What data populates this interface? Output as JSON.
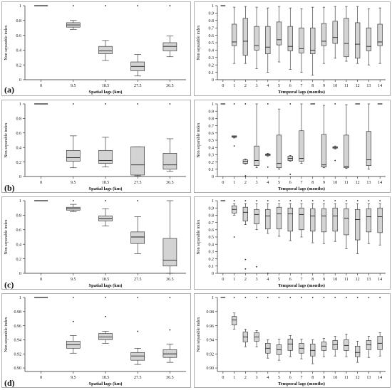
{
  "figure": {
    "row_labels": [
      "(a)",
      "(b)",
      "(c)",
      "(d)"
    ]
  },
  "chart_data": [
    {
      "type": "box",
      "row": "(a)",
      "xlabel": "Spatial lags (km)",
      "ylabel": "Non separable index",
      "categories": [
        "0",
        "9.5",
        "18.5",
        "27.5",
        "36.5"
      ],
      "ylim": [
        0,
        1
      ],
      "yticks": [
        "0",
        "0.2",
        "0.4",
        "0.6",
        "0.8",
        "1"
      ],
      "boxes": [
        {
          "min": 1,
          "q1": 1,
          "median": 1,
          "q3": 1,
          "max": 1,
          "outliers": []
        },
        {
          "min": 0.68,
          "q1": 0.71,
          "median": 0.74,
          "q3": 0.77,
          "max": 0.8,
          "outliers": [
            1.0
          ]
        },
        {
          "min": 0.26,
          "q1": 0.35,
          "median": 0.39,
          "q3": 0.45,
          "max": 0.53,
          "outliers": [
            1.0
          ]
        },
        {
          "min": 0.05,
          "q1": 0.12,
          "median": 0.18,
          "q3": 0.24,
          "max": 0.34,
          "outliers": [
            1.0
          ]
        },
        {
          "min": 0.31,
          "q1": 0.39,
          "median": 0.45,
          "q3": 0.5,
          "max": 0.59,
          "outliers": [
            1.0
          ]
        }
      ]
    },
    {
      "type": "box",
      "row": "(a)",
      "xlabel": "Temporal lags (months)",
      "ylabel": "Non separable index",
      "categories": [
        "0",
        "1",
        "2",
        "3",
        "4",
        "5",
        "6",
        "7",
        "8",
        "9",
        "10",
        "11",
        "12",
        "13",
        "14"
      ],
      "ylim": [
        0,
        1
      ],
      "yticks": [
        "0",
        "0.1",
        "0.2",
        "0.3",
        "0.4",
        "0.5",
        "0.6",
        "0.7",
        "0.8",
        "0.9",
        "1"
      ],
      "boxes": [
        {
          "min": 1,
          "q1": 1,
          "median": 1,
          "q3": 1,
          "max": 1,
          "outliers": []
        },
        {
          "min": 0.22,
          "q1": 0.46,
          "median": 0.51,
          "q3": 0.75,
          "max": 0.98,
          "outliers": []
        },
        {
          "min": 0.22,
          "q1": 0.33,
          "median": 0.52,
          "q3": 0.83,
          "max": 0.99,
          "outliers": []
        },
        {
          "min": 0.15,
          "q1": 0.4,
          "median": 0.46,
          "q3": 0.72,
          "max": 0.98,
          "outliers": []
        },
        {
          "min": 0.1,
          "q1": 0.35,
          "median": 0.44,
          "q3": 0.72,
          "max": 0.97,
          "outliers": []
        },
        {
          "min": 0.24,
          "q1": 0.47,
          "median": 0.54,
          "q3": 0.78,
          "max": 0.99,
          "outliers": []
        },
        {
          "min": 0.14,
          "q1": 0.39,
          "median": 0.45,
          "q3": 0.72,
          "max": 0.97,
          "outliers": []
        },
        {
          "min": 0.1,
          "q1": 0.36,
          "median": 0.42,
          "q3": 0.7,
          "max": 0.96,
          "outliers": []
        },
        {
          "min": 0.06,
          "q1": 0.35,
          "median": 0.4,
          "q3": 0.7,
          "max": 0.98,
          "outliers": []
        },
        {
          "min": 0.22,
          "q1": 0.46,
          "median": 0.52,
          "q3": 0.76,
          "max": 0.98,
          "outliers": []
        },
        {
          "min": 0.29,
          "q1": 0.49,
          "median": 0.57,
          "q3": 0.79,
          "max": 0.99,
          "outliers": []
        },
        {
          "min": 0.25,
          "q1": 0.31,
          "median": 0.49,
          "q3": 0.83,
          "max": 0.99,
          "outliers": []
        },
        {
          "min": 0.22,
          "q1": 0.29,
          "median": 0.48,
          "q3": 0.77,
          "max": 0.99,
          "outliers": []
        },
        {
          "min": 0.2,
          "q1": 0.39,
          "median": 0.45,
          "q3": 0.7,
          "max": 0.96,
          "outliers": []
        },
        {
          "min": 0.22,
          "q1": 0.46,
          "median": 0.51,
          "q3": 0.75,
          "max": 0.97,
          "outliers": []
        }
      ]
    },
    {
      "type": "box",
      "row": "(b)",
      "xlabel": "Spatial lags (km)",
      "ylabel": "Non separable index",
      "categories": [
        "0",
        "9.5",
        "18.5",
        "27.5",
        "36.5"
      ],
      "ylim": [
        0,
        1
      ],
      "yticks": [
        "0",
        "0.2",
        "0.4",
        "0.6",
        "0.8",
        "1"
      ],
      "boxes": [
        {
          "min": 1,
          "q1": 1,
          "median": 1,
          "q3": 1,
          "max": 1,
          "outliers": []
        },
        {
          "min": 0.12,
          "q1": 0.21,
          "median": 0.26,
          "q3": 0.36,
          "max": 0.56,
          "outliers": [
            1.0
          ]
        },
        {
          "min": 0.13,
          "q1": 0.18,
          "median": 0.22,
          "q3": 0.36,
          "max": 0.54,
          "outliers": [
            1.0
          ]
        },
        {
          "min": 0.01,
          "q1": 0.02,
          "median": 0.16,
          "q3": 0.41,
          "max": 0.41,
          "outliers": [
            1.0
          ]
        },
        {
          "min": 0.07,
          "q1": 0.1,
          "median": 0.16,
          "q3": 0.32,
          "max": 0.52,
          "outliers": [
            1.0
          ]
        }
      ]
    },
    {
      "type": "box",
      "row": "(b)",
      "xlabel": "Temporal lags (months)",
      "ylabel": "Non separable index",
      "categories": [
        "0",
        "1",
        "2",
        "3",
        "4",
        "5",
        "6",
        "7",
        "8",
        "9",
        "10",
        "11",
        "12",
        "13",
        "14"
      ],
      "ylim": [
        0,
        1
      ],
      "yticks": [
        "0",
        "0.1",
        "0.2",
        "0.3",
        "0.4",
        "0.5",
        "0.6",
        "0.7",
        "0.8",
        "0.9",
        "1"
      ],
      "boxes": [
        {
          "min": 1,
          "q1": 1,
          "median": 1,
          "q3": 1,
          "max": 1,
          "outliers": []
        },
        {
          "min": 0.53,
          "q1": 0.54,
          "median": 0.55,
          "q3": 0.56,
          "max": 0.56,
          "outliers": [
            0.42,
            1.0
          ]
        },
        {
          "min": 0.17,
          "q1": 0.18,
          "median": 0.21,
          "q3": 0.23,
          "max": 0.24,
          "outliers": [
            0.01,
            1.0
          ]
        },
        {
          "min": 0.12,
          "q1": 0.15,
          "median": 0.22,
          "q3": 0.42,
          "max": 1.0,
          "outliers": []
        },
        {
          "min": 0.28,
          "q1": 0.29,
          "median": 0.3,
          "q3": 0.31,
          "max": 0.32,
          "outliers": [
            0.13,
            1.0
          ]
        },
        {
          "min": 0.1,
          "q1": 0.12,
          "median": 0.18,
          "q3": 0.57,
          "max": 0.93,
          "outliers": []
        },
        {
          "min": 0.21,
          "q1": 0.22,
          "median": 0.25,
          "q3": 0.28,
          "max": 0.29,
          "outliers": [
            0.03,
            1.0
          ]
        },
        {
          "min": 0.18,
          "q1": 0.21,
          "median": 0.25,
          "q3": 0.63,
          "max": 1.0,
          "outliers": []
        },
        {
          "min": 1,
          "q1": 1,
          "median": 1,
          "q3": 1,
          "max": 1,
          "outliers": []
        },
        {
          "min": 0.12,
          "q1": 0.13,
          "median": 0.16,
          "q3": 0.58,
          "max": 0.98,
          "outliers": []
        },
        {
          "min": 0.38,
          "q1": 0.39,
          "median": 0.4,
          "q3": 0.41,
          "max": 0.42,
          "outliers": [
            0.22,
            1.0
          ]
        },
        {
          "min": 0.11,
          "q1": 0.12,
          "median": 0.14,
          "q3": 0.57,
          "max": 0.99,
          "outliers": []
        },
        {
          "min": 1,
          "q1": 1,
          "median": 1,
          "q3": 1,
          "max": 1,
          "outliers": []
        },
        {
          "min": 0.1,
          "q1": 0.15,
          "median": 0.23,
          "q3": 0.62,
          "max": 1.0,
          "outliers": []
        },
        {
          "min": 1,
          "q1": 1,
          "median": 1,
          "q3": 1,
          "max": 1,
          "outliers": []
        }
      ]
    },
    {
      "type": "box",
      "row": "(c)",
      "xlabel": "Spatial lags (km)",
      "ylabel": "Non separable index",
      "categories": [
        "0",
        "9.5",
        "18.5",
        "27.5",
        "36.5"
      ],
      "ylim": [
        0,
        1
      ],
      "yticks": [
        "0",
        "0.2",
        "0.4",
        "0.6",
        "0.8",
        "1"
      ],
      "boxes": [
        {
          "min": 1,
          "q1": 1,
          "median": 1,
          "q3": 1,
          "max": 1,
          "outliers": []
        },
        {
          "min": 0.85,
          "q1": 0.87,
          "median": 0.89,
          "q3": 0.91,
          "max": 0.95,
          "outliers": [
            1.0
          ]
        },
        {
          "min": 0.65,
          "q1": 0.72,
          "median": 0.75,
          "q3": 0.79,
          "max": 0.89,
          "outliers": [
            1.0
          ]
        },
        {
          "min": 0.27,
          "q1": 0.41,
          "median": 0.5,
          "q3": 0.57,
          "max": 0.78,
          "outliers": [
            1.0
          ]
        },
        {
          "min": 0.0,
          "q1": 0.1,
          "median": 0.18,
          "q3": 0.48,
          "max": 1.0,
          "outliers": []
        }
      ]
    },
    {
      "type": "box",
      "row": "(c)",
      "xlabel": "Temporal lags (months)",
      "ylabel": "Non separable index",
      "categories": [
        "0",
        "1",
        "2",
        "3",
        "4",
        "5",
        "6",
        "7",
        "8",
        "9",
        "10",
        "11",
        "12",
        "13",
        "14"
      ],
      "ylim": [
        0,
        1
      ],
      "yticks": [
        "0",
        "0.1",
        "0.2",
        "0.3",
        "0.4",
        "0.5",
        "0.6",
        "0.7",
        "0.8",
        "0.9",
        "1"
      ],
      "boxes": [
        {
          "min": 1,
          "q1": 1,
          "median": 1,
          "q3": 1,
          "max": 1,
          "outliers": []
        },
        {
          "min": 0.8,
          "q1": 0.83,
          "median": 0.88,
          "q3": 0.93,
          "max": 0.96,
          "outliers": [
            0.5,
            1.0
          ]
        },
        {
          "min": 0.67,
          "q1": 0.72,
          "median": 0.84,
          "q3": 0.91,
          "max": 0.96,
          "outliers": [
            0.19,
            0.06,
            1.0
          ]
        },
        {
          "min": 0.6,
          "q1": 0.68,
          "median": 0.81,
          "q3": 0.88,
          "max": 0.96,
          "outliers": [
            0.09,
            1.0
          ]
        },
        {
          "min": 0.55,
          "q1": 0.61,
          "median": 0.79,
          "q3": 0.88,
          "max": 0.96,
          "outliers": [
            0.0,
            1.0
          ]
        },
        {
          "min": 0.51,
          "q1": 0.61,
          "median": 0.82,
          "q3": 0.91,
          "max": 0.96,
          "outliers": [
            1.0
          ]
        },
        {
          "min": 0.45,
          "q1": 0.58,
          "median": 0.82,
          "q3": 0.9,
          "max": 0.96,
          "outliers": [
            1.0
          ]
        },
        {
          "min": 0.5,
          "q1": 0.6,
          "median": 0.81,
          "q3": 0.9,
          "max": 0.96,
          "outliers": [
            1.0
          ]
        },
        {
          "min": 0.42,
          "q1": 0.58,
          "median": 0.79,
          "q3": 0.89,
          "max": 0.96,
          "outliers": [
            1.0
          ]
        },
        {
          "min": 0.41,
          "q1": 0.57,
          "median": 0.79,
          "q3": 0.89,
          "max": 0.96,
          "outliers": [
            1.0
          ]
        },
        {
          "min": 0.44,
          "q1": 0.58,
          "median": 0.79,
          "q3": 0.9,
          "max": 0.96,
          "outliers": [
            1.0
          ]
        },
        {
          "min": 0.34,
          "q1": 0.53,
          "median": 0.76,
          "q3": 0.89,
          "max": 0.96,
          "outliers": [
            1.0
          ]
        },
        {
          "min": 0.27,
          "q1": 0.46,
          "median": 0.74,
          "q3": 0.88,
          "max": 0.96,
          "outliers": [
            1.0
          ]
        },
        {
          "min": 0.41,
          "q1": 0.57,
          "median": 0.78,
          "q3": 0.89,
          "max": 0.96,
          "outliers": [
            1.0
          ]
        },
        {
          "min": 0.39,
          "q1": 0.56,
          "median": 0.78,
          "q3": 0.9,
          "max": 0.96,
          "outliers": [
            1.0
          ]
        }
      ]
    },
    {
      "type": "box",
      "row": "(d)",
      "xlabel": "Spatial lags (km)",
      "ylabel": "Non separable index",
      "categories": [
        "0",
        "9.5",
        "18.5",
        "27.5",
        "36.5"
      ],
      "ylim": [
        0.895,
        1.0
      ],
      "yticks": [
        "0.90",
        "0.92",
        "0.94",
        "0.96",
        "0.98",
        "1"
      ],
      "ytick_values": [
        0.9,
        0.92,
        0.94,
        0.96,
        0.98,
        1.0
      ],
      "boxes": [
        {
          "min": 1,
          "q1": 1,
          "median": 1,
          "q3": 1,
          "max": 1,
          "outliers": []
        },
        {
          "min": 0.921,
          "q1": 0.928,
          "median": 0.933,
          "q3": 0.938,
          "max": 0.946,
          "outliers": [
            0.966,
            1.0
          ]
        },
        {
          "min": 0.935,
          "q1": 0.94,
          "median": 0.944,
          "q3": 0.949,
          "max": 0.952,
          "outliers": [
            0.973,
            1.0
          ]
        },
        {
          "min": 0.905,
          "q1": 0.911,
          "median": 0.917,
          "q3": 0.922,
          "max": 0.928,
          "outliers": [
            0.952,
            1.0
          ]
        },
        {
          "min": 0.908,
          "q1": 0.915,
          "median": 0.92,
          "q3": 0.926,
          "max": 0.934,
          "outliers": [
            0.954,
            1.0
          ]
        }
      ]
    },
    {
      "type": "box",
      "row": "(d)",
      "xlabel": "Temporal lags (months)",
      "ylabel": "Non separable index",
      "categories": [
        "0",
        "1",
        "2",
        "3",
        "4",
        "5",
        "6",
        "7",
        "8",
        "9",
        "10",
        "11",
        "12",
        "13",
        "14"
      ],
      "ylim": [
        0.895,
        1.0
      ],
      "yticks": [
        "0.90",
        "0.92",
        "0.94",
        "0.96",
        "0.98",
        "1"
      ],
      "ytick_values": [
        0.9,
        0.92,
        0.94,
        0.96,
        0.98,
        1.0
      ],
      "boxes": [
        {
          "min": 1,
          "q1": 1,
          "median": 1,
          "q3": 1,
          "max": 1,
          "outliers": []
        },
        {
          "min": 0.955,
          "q1": 0.961,
          "median": 0.968,
          "q3": 0.973,
          "max": 0.978,
          "outliers": [
            1.0
          ]
        },
        {
          "min": 0.93,
          "q1": 0.937,
          "median": 0.944,
          "q3": 0.951,
          "max": 0.955,
          "outliers": [
            1.0
          ]
        },
        {
          "min": 0.93,
          "q1": 0.938,
          "median": 0.944,
          "q3": 0.95,
          "max": 0.953,
          "outliers": [
            1.0
          ]
        },
        {
          "min": 0.914,
          "q1": 0.921,
          "median": 0.928,
          "q3": 0.935,
          "max": 0.94,
          "outliers": [
            1.0
          ]
        },
        {
          "min": 0.911,
          "q1": 0.919,
          "median": 0.926,
          "q3": 0.933,
          "max": 0.941,
          "outliers": [
            1.0
          ]
        },
        {
          "min": 0.916,
          "q1": 0.925,
          "median": 0.934,
          "q3": 0.941,
          "max": 0.946,
          "outliers": [
            1.0
          ]
        },
        {
          "min": 0.913,
          "q1": 0.921,
          "median": 0.928,
          "q3": 0.935,
          "max": 0.941,
          "outliers": [
            1.0
          ]
        },
        {
          "min": 0.906,
          "q1": 0.917,
          "median": 0.925,
          "q3": 0.934,
          "max": 0.94,
          "outliers": [
            1.0
          ]
        },
        {
          "min": 0.916,
          "q1": 0.925,
          "median": 0.931,
          "q3": 0.937,
          "max": 0.942,
          "outliers": [
            1.0
          ]
        },
        {
          "min": 0.917,
          "q1": 0.926,
          "median": 0.933,
          "q3": 0.939,
          "max": 0.945,
          "outliers": [
            1.0
          ]
        },
        {
          "min": 0.916,
          "q1": 0.925,
          "median": 0.932,
          "q3": 0.94,
          "max": 0.948,
          "outliers": [
            1.0
          ]
        },
        {
          "min": 0.908,
          "q1": 0.916,
          "median": 0.922,
          "q3": 0.931,
          "max": 0.938,
          "outliers": [
            1.0
          ]
        },
        {
          "min": 0.915,
          "q1": 0.926,
          "median": 0.933,
          "q3": 0.939,
          "max": 0.945,
          "outliers": [
            1.0
          ]
        },
        {
          "min": 0.917,
          "q1": 0.926,
          "median": 0.935,
          "q3": 0.945,
          "max": 0.95,
          "outliers": [
            1.0
          ]
        }
      ]
    }
  ]
}
